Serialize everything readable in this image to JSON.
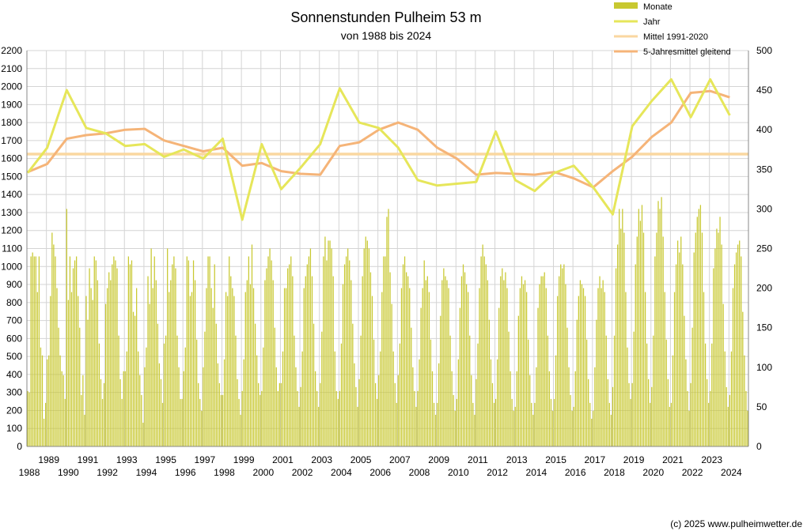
{
  "chart_data": {
    "type": "bar+line",
    "title": "Sonnenstunden Pulheim 53 m",
    "subtitle": "von 1988 bis 2024",
    "credit": "(c) 2025 www.pulheimwetter.de",
    "grid": true,
    "legend_position": "top-right",
    "y_left": {
      "min": 0,
      "max": 2200,
      "step": 100
    },
    "y_right": {
      "min": 0,
      "max": 500,
      "step": 50
    },
    "x_labels_top": [
      "1989",
      "1991",
      "1993",
      "1995",
      "1997",
      "1999",
      "2001",
      "2003",
      "2005",
      "2007",
      "2009",
      "2011",
      "2013",
      "2015",
      "2017",
      "2019",
      "2021",
      "2023"
    ],
    "x_labels_bottom": [
      "1988",
      "1990",
      "1992",
      "1994",
      "1996",
      "1998",
      "2000",
      "2002",
      "2004",
      "2006",
      "2008",
      "2010",
      "2012",
      "2014",
      "2016",
      "2018",
      "2020",
      "2022",
      "2024"
    ],
    "colors": {
      "monate": "#c8c830",
      "jahr": "#e6e65a",
      "mittel": "#fad7a0",
      "gleitend": "#f5b478",
      "grid": "#d4d4d4"
    },
    "series": [
      {
        "name": "Monate",
        "axis": "right",
        "kind": "bar",
        "start_year": 1988,
        "monthly_values_by_year": [
          [
            70,
            68,
            240,
            245,
            240,
            240,
            195,
            240,
            125,
            115,
            35,
            55
          ],
          [
            110,
            115,
            190,
            270,
            255,
            240,
            200,
            150,
            115,
            95,
            90,
            60
          ],
          [
            300,
            185,
            240,
            195,
            225,
            235,
            240,
            190,
            150,
            65,
            90,
            40
          ],
          [
            190,
            160,
            225,
            200,
            185,
            240,
            235,
            210,
            130,
            85,
            60,
            80
          ],
          [
            180,
            200,
            220,
            210,
            230,
            240,
            235,
            225,
            140,
            85,
            60,
            95
          ],
          [
            95,
            120,
            240,
            230,
            235,
            170,
            165,
            200,
            120,
            90,
            65,
            30
          ],
          [
            100,
            125,
            215,
            180,
            250,
            200,
            240,
            210,
            155,
            105,
            85,
            55
          ],
          [
            130,
            140,
            250,
            195,
            210,
            230,
            240,
            225,
            140,
            100,
            60,
            60
          ],
          [
            95,
            125,
            240,
            235,
            190,
            195,
            235,
            210,
            135,
            80,
            60,
            45
          ],
          [
            100,
            145,
            200,
            240,
            240,
            200,
            175,
            230,
            155,
            105,
            80,
            65
          ],
          [
            65,
            110,
            195,
            190,
            240,
            215,
            200,
            190,
            140,
            85,
            60,
            40
          ],
          [
            70,
            110,
            195,
            210,
            240,
            205,
            255,
            200,
            155,
            115,
            80,
            65
          ],
          [
            70,
            125,
            210,
            225,
            240,
            250,
            235,
            210,
            150,
            100,
            70,
            80
          ],
          [
            80,
            120,
            200,
            200,
            225,
            230,
            240,
            215,
            140,
            100,
            70,
            50
          ],
          [
            75,
            120,
            200,
            215,
            230,
            240,
            250,
            215,
            155,
            95,
            70,
            50
          ],
          [
            80,
            145,
            240,
            265,
            235,
            260,
            260,
            250,
            215,
            120,
            70,
            60
          ],
          [
            70,
            130,
            205,
            230,
            240,
            250,
            235,
            210,
            155,
            105,
            75,
            50
          ],
          [
            85,
            140,
            215,
            250,
            265,
            260,
            250,
            220,
            190,
            135,
            80,
            60
          ],
          [
            90,
            120,
            195,
            240,
            240,
            290,
            300,
            220,
            180,
            120,
            80,
            55
          ],
          [
            90,
            130,
            200,
            230,
            240,
            220,
            215,
            200,
            150,
            100,
            70,
            50
          ],
          [
            70,
            110,
            175,
            200,
            235,
            210,
            215,
            195,
            135,
            95,
            55,
            40
          ],
          [
            55,
            105,
            165,
            210,
            225,
            215,
            210,
            200,
            140,
            95,
            65,
            45
          ],
          [
            60,
            110,
            175,
            215,
            230,
            220,
            205,
            195,
            140,
            90,
            55,
            40
          ],
          [
            85,
            130,
            200,
            240,
            255,
            240,
            230,
            210,
            160,
            110,
            80,
            55
          ],
          [
            60,
            110,
            175,
            215,
            225,
            210,
            220,
            200,
            145,
            95,
            60,
            45
          ],
          [
            50,
            95,
            165,
            200,
            215,
            205,
            210,
            195,
            135,
            90,
            55,
            40
          ],
          [
            55,
            100,
            175,
            205,
            215,
            215,
            220,
            200,
            140,
            95,
            60,
            45
          ],
          [
            60,
            115,
            190,
            215,
            230,
            225,
            230,
            205,
            150,
            100,
            65,
            45
          ],
          [
            50,
            95,
            160,
            190,
            210,
            205,
            200,
            190,
            135,
            85,
            55,
            35
          ],
          [
            45,
            100,
            160,
            200,
            215,
            200,
            210,
            195,
            140,
            85,
            55,
            40
          ],
          [
            75,
            140,
            225,
            255,
            300,
            275,
            300,
            270,
            195,
            125,
            80,
            60
          ],
          [
            80,
            145,
            230,
            265,
            300,
            285,
            305,
            270,
            195,
            130,
            85,
            55
          ],
          [
            75,
            140,
            240,
            270,
            310,
            300,
            315,
            265,
            195,
            135,
            85,
            50
          ],
          [
            55,
            115,
            195,
            230,
            260,
            245,
            265,
            230,
            165,
            110,
            70,
            45
          ],
          [
            80,
            150,
            245,
            270,
            290,
            300,
            305,
            270,
            195,
            130,
            85,
            55
          ],
          [
            70,
            130,
            225,
            250,
            275,
            270,
            290,
            255,
            180,
            120,
            75,
            50
          ],
          [
            65,
            120,
            200,
            230,
            245,
            255,
            260,
            240,
            170,
            115,
            70,
            45
          ]
        ]
      },
      {
        "name": "Jahr",
        "axis": "left",
        "kind": "line",
        "x": [
          1988,
          1989,
          1990,
          1991,
          1992,
          1993,
          1994,
          1995,
          1996,
          1997,
          1998,
          1999,
          2000,
          2001,
          2002,
          2003,
          2004,
          2005,
          2006,
          2007,
          2008,
          2009,
          2010,
          2011,
          2012,
          2013,
          2014,
          2015,
          2016,
          2017,
          2018,
          2019,
          2020,
          2021,
          2022,
          2023,
          2024
        ],
        "values": [
          1520,
          1660,
          1980,
          1770,
          1740,
          1670,
          1680,
          1610,
          1650,
          1600,
          1710,
          1260,
          1680,
          1430,
          1550,
          1680,
          1990,
          1800,
          1770,
          1660,
          1480,
          1450,
          1460,
          1470,
          1750,
          1480,
          1420,
          1520,
          1560,
          1440,
          1290,
          1780,
          1920,
          2040,
          1830,
          2040,
          1840
        ]
      },
      {
        "name": "Mittel 1991-2020",
        "axis": "left",
        "kind": "line",
        "value": 1625
      },
      {
        "name": "5-Jahresmittel gleitend",
        "axis": "left",
        "kind": "line",
        "x": [
          1988,
          1989,
          1990,
          1991,
          1992,
          1993,
          1994,
          1995,
          1996,
          1997,
          1998,
          1999,
          2000,
          2001,
          2002,
          2003,
          2004,
          2005,
          2006,
          2007,
          2008,
          2009,
          2010,
          2011,
          2012,
          2013,
          2014,
          2015,
          2016,
          2017,
          2018,
          2019,
          2020,
          2021,
          2022,
          2023,
          2024
        ],
        "values": [
          1525,
          1570,
          1710,
          1730,
          1740,
          1760,
          1765,
          1700,
          1670,
          1640,
          1660,
          1560,
          1575,
          1530,
          1515,
          1510,
          1670,
          1690,
          1760,
          1800,
          1760,
          1660,
          1600,
          1510,
          1520,
          1515,
          1510,
          1525,
          1490,
          1440,
          1530,
          1610,
          1720,
          1800,
          1965,
          1975,
          1940
        ]
      }
    ]
  }
}
